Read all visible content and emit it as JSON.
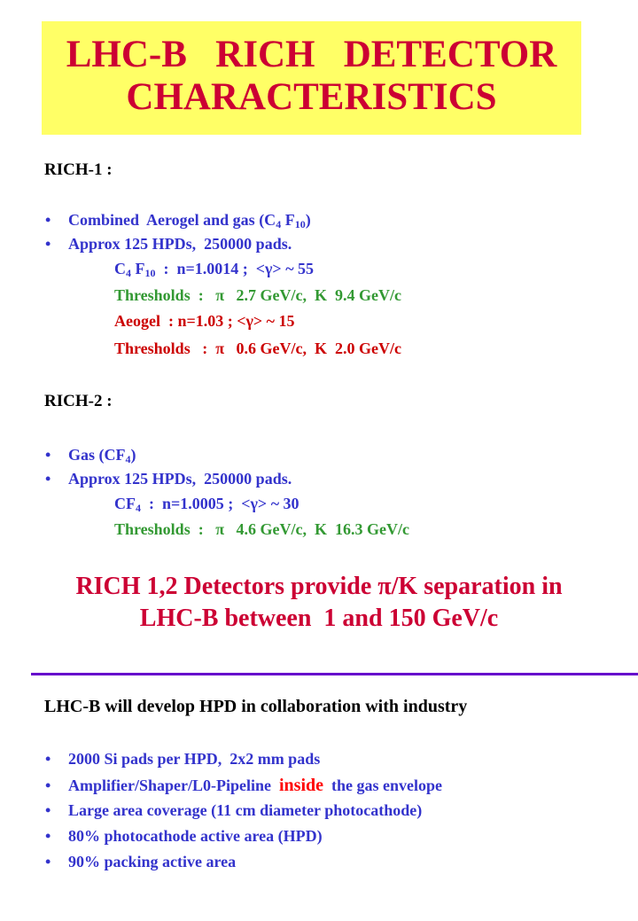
{
  "title": [
    "LHC-B   RICH   DETECTOR",
    "CHARACTERISTICS"
  ],
  "rich1": {
    "heading": "RICH-1 :",
    "bullets": [
      [
        {
          "text": "Combined  Aerogel and gas (C"
        },
        {
          "sub": "4"
        },
        {
          "text": " F"
        },
        {
          "sub": "10"
        },
        {
          "text": ")"
        }
      ],
      [
        {
          "text": "Approx 125 HPDs,  250000 pads."
        }
      ]
    ],
    "details": [
      [
        {
          "text": "C"
        },
        {
          "sub": "4"
        },
        {
          "text": " F"
        },
        {
          "sub": "10"
        },
        {
          "text": "  :  n=1.0014 ;  <γ> ~ 55"
        }
      ],
      [
        {
          "text": "Thresholds  :   π   2.7 GeV/c,  K  9.4 GeV/c"
        }
      ],
      [
        {
          "text": "Aeogel  : n=1.03 ; <γ> ~ 15"
        }
      ],
      [
        {
          "text": "Thresholds   :  π   0.6 GeV/c,  K  2.0 GeV/c"
        }
      ]
    ]
  },
  "rich2": {
    "heading": "RICH-2 :",
    "bullets": [
      [
        {
          "text": "Gas (CF"
        },
        {
          "sub": "4"
        },
        {
          "text": ")"
        }
      ],
      [
        {
          "text": "Approx 125 HPDs,  250000 pads."
        }
      ]
    ],
    "details": [
      [
        {
          "text": "CF"
        },
        {
          "sub": "4"
        },
        {
          "text": "  :  n=1.0005 ;  <γ> ~ 30"
        }
      ],
      [
        {
          "text": "Thresholds  :   π   4.6 GeV/c,  K  16.3 GeV/c"
        }
      ]
    ]
  },
  "summary": [
    "RICH 1,2 Detectors provide π/K separation in",
    "LHC-B between  1 and 150 GeV/c"
  ],
  "hpd": {
    "heading": "LHC-B will develop HPD in collaboration with industry",
    "bullets": [
      [
        {
          "text": "2000 Si pads per HPD,  2x2 mm pads"
        }
      ],
      [
        {
          "text": "Amplifier/Shaper/L0-Pipeline  "
        },
        {
          "emphasis": "inside"
        },
        {
          "text": "  the gas envelope"
        }
      ],
      [
        {
          "text": "Large area coverage (11 cm diameter photocathode)"
        }
      ],
      [
        {
          "text": "80% photocathode active area (HPD)"
        }
      ],
      [
        {
          "text": "90% packing active area"
        }
      ]
    ]
  }
}
